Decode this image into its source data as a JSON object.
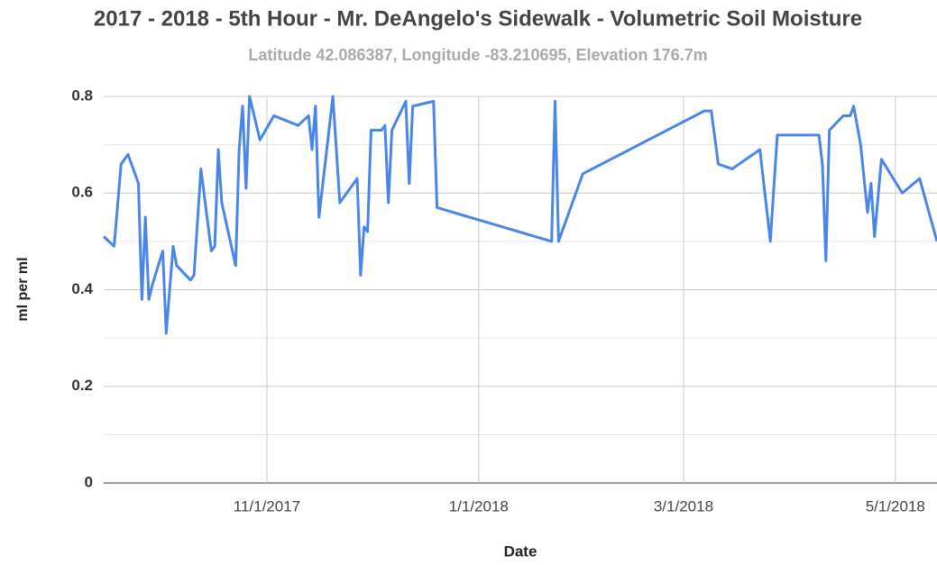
{
  "chart_data": {
    "type": "line",
    "title": "2017 - 2018 - 5th Hour - Mr. DeAngelo's Sidewalk - Volumetric Soil Moisture",
    "subtitle": "Latitude 42.086387, Longitude -83.210695, Elevation 176.7m",
    "x_label": "Date",
    "y_label": "ml per ml",
    "x": [
      "2017-09-15",
      "2017-09-18",
      "2017-09-20",
      "2017-09-22",
      "2017-09-25",
      "2017-09-26",
      "2017-09-27",
      "2017-09-28",
      "2017-09-29",
      "2017-10-02",
      "2017-10-03",
      "2017-10-05",
      "2017-10-06",
      "2017-10-10",
      "2017-10-11",
      "2017-10-13",
      "2017-10-16",
      "2017-10-17",
      "2017-10-18",
      "2017-10-19",
      "2017-10-23",
      "2017-10-24",
      "2017-10-25",
      "2017-10-26",
      "2017-10-27",
      "2017-10-30",
      "2017-11-03",
      "2017-11-10",
      "2017-11-13",
      "2017-11-14",
      "2017-11-15",
      "2017-11-16",
      "2017-11-20",
      "2017-11-22",
      "2017-11-27",
      "2017-11-28",
      "2017-11-29",
      "2017-11-30",
      "2017-12-01",
      "2017-12-04",
      "2017-12-05",
      "2017-12-06",
      "2017-12-07",
      "2017-12-11",
      "2017-12-12",
      "2017-12-13",
      "2017-12-19",
      "2017-12-20",
      "2018-01-22",
      "2018-01-23",
      "2018-01-24",
      "2018-01-31",
      "2018-03-07",
      "2018-03-09",
      "2018-03-11",
      "2018-03-15",
      "2018-03-23",
      "2018-03-26",
      "2018-03-28",
      "2018-04-09",
      "2018-04-10",
      "2018-04-11",
      "2018-04-12",
      "2018-04-16",
      "2018-04-18",
      "2018-04-19",
      "2018-04-21",
      "2018-04-23",
      "2018-04-24",
      "2018-04-25",
      "2018-04-27",
      "2018-05-03",
      "2018-05-08",
      "2018-05-13"
    ],
    "series": [
      {
        "name": "Volumetric Soil Moisture",
        "color": "#4a86e8",
        "values": [
          0.51,
          0.49,
          0.66,
          0.68,
          0.62,
          0.38,
          0.55,
          0.38,
          0.41,
          0.48,
          0.31,
          0.49,
          0.45,
          0.42,
          0.43,
          0.65,
          0.48,
          0.49,
          0.69,
          0.58,
          0.45,
          0.69,
          0.78,
          0.61,
          0.8,
          0.71,
          0.76,
          0.74,
          0.76,
          0.69,
          0.78,
          0.55,
          0.8,
          0.58,
          0.63,
          0.43,
          0.53,
          0.52,
          0.73,
          0.73,
          0.74,
          0.58,
          0.73,
          0.79,
          0.62,
          0.78,
          0.79,
          0.57,
          0.5,
          0.79,
          0.5,
          0.64,
          0.77,
          0.77,
          0.66,
          0.65,
          0.69,
          0.5,
          0.72,
          0.72,
          0.66,
          0.46,
          0.73,
          0.76,
          0.76,
          0.78,
          0.7,
          0.56,
          0.62,
          0.51,
          0.67,
          0.6,
          0.63,
          0.5
        ]
      }
    ],
    "xlim": [
      "2017-09-15",
      "2018-05-13"
    ],
    "xticks": [
      {
        "value": "2017-11-01",
        "label": "11/1/2017"
      },
      {
        "value": "2018-01-01",
        "label": "1/1/2018"
      },
      {
        "value": "2018-03-01",
        "label": "3/1/2018"
      },
      {
        "value": "2018-05-01",
        "label": "5/1/2018"
      }
    ],
    "ylim": [
      0,
      0.8
    ],
    "yticks": [
      0,
      0.2,
      0.4,
      0.6,
      0.8
    ],
    "grid": true
  }
}
